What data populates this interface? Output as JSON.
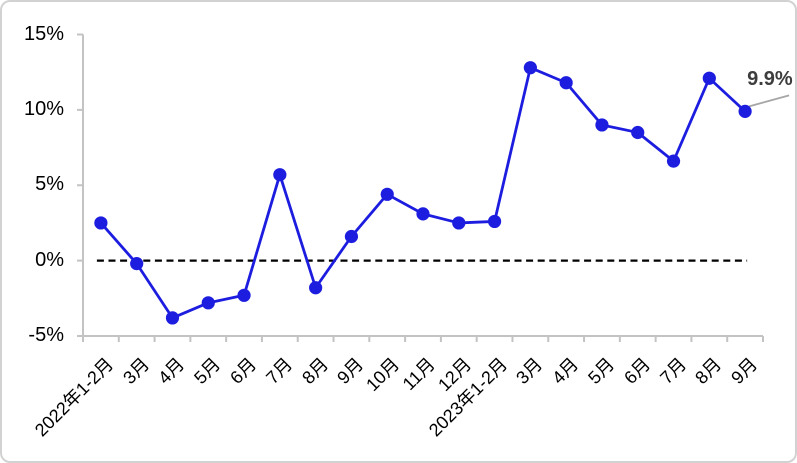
{
  "chart_data": {
    "type": "line",
    "title": "",
    "categories": [
      "2022年1-2月",
      "3月",
      "4月",
      "5月",
      "6月",
      "7月",
      "8月",
      "9月",
      "10月",
      "11月",
      "12月",
      "2023年1-2月",
      "3月",
      "4月",
      "5月",
      "6月",
      "7月",
      "8月",
      "9月"
    ],
    "values": [
      2.5,
      -0.2,
      -3.8,
      -2.8,
      -2.3,
      5.7,
      -1.8,
      1.6,
      4.4,
      3.1,
      2.5,
      2.6,
      12.8,
      11.8,
      9.0,
      8.5,
      6.6,
      12.1,
      9.9
    ],
    "ylim": [
      -5,
      15
    ],
    "ytick_values": [
      15,
      10,
      5,
      0,
      -5
    ],
    "ytick_labels": [
      "15%",
      "10%",
      "5%",
      "0%",
      "-5%"
    ],
    "xlabel": "",
    "ylabel": "",
    "grid": "off",
    "legend": "none",
    "marker": "circle",
    "line_color": "#1d1de0",
    "axis_color": "#c3c3c3",
    "zero_line_style": "dashed",
    "zero_line_color": "#000000",
    "annotation": {
      "text": "9.9%",
      "index": 18,
      "color": "#3d3d3d",
      "leader_color": "#a6a6a6"
    }
  }
}
